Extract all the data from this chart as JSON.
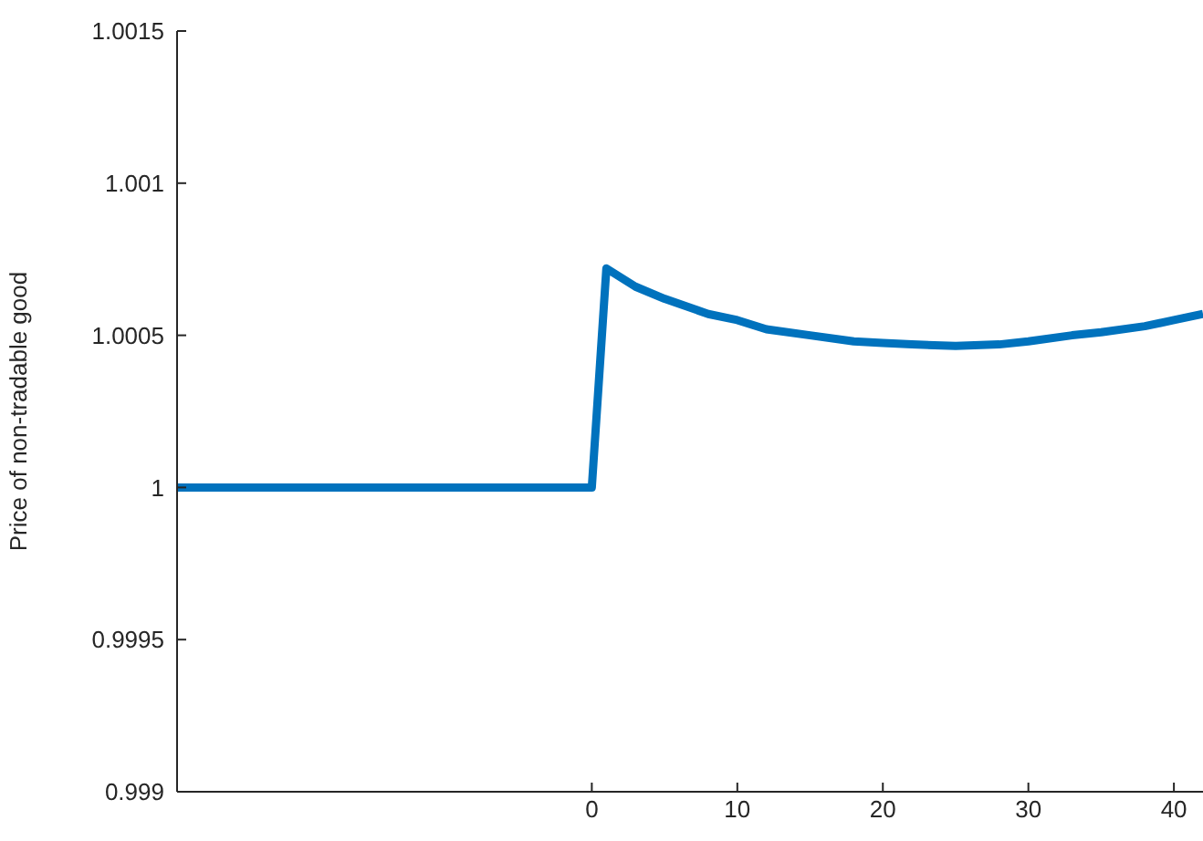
{
  "chart_data": {
    "type": "line",
    "ylabel": "Price of non-tradable good",
    "x": [
      -28.5,
      -20,
      -10,
      0,
      1,
      3,
      5,
      8,
      10,
      12,
      15,
      18,
      20,
      22,
      25,
      28,
      30,
      33,
      35,
      38,
      40,
      42
    ],
    "series": [
      {
        "color": "#0072bd",
        "values": [
          1,
          1,
          1,
          1,
          1.00072,
          1.00066,
          1.00062,
          1.00057,
          1.00055,
          1.00052,
          1.0005,
          1.00048,
          1.000475,
          1.00047,
          1.000465,
          1.00047,
          1.00048,
          1.0005,
          1.00051,
          1.00053,
          1.00055,
          1.00057
        ]
      }
    ],
    "xlim": [
      -28.5,
      42
    ],
    "xticks": [
      0,
      10,
      20,
      30,
      40
    ],
    "ylim": [
      0.999,
      1.0015
    ],
    "yticks": [
      0.999,
      0.9995,
      1,
      1.0005,
      1.001,
      1.0015
    ],
    "grid": false,
    "legend": false,
    "marker": "none",
    "line_style": "solid"
  }
}
